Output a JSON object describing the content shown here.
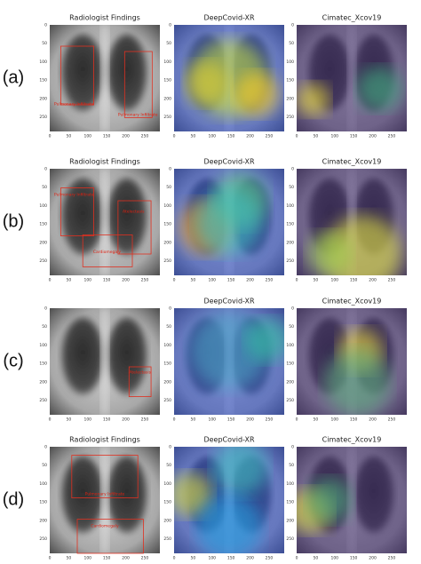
{
  "axis_ticks": [
    0,
    50,
    100,
    150,
    200,
    250
  ],
  "rows": [
    {
      "label": "(a)",
      "panels": [
        {
          "title": "Radiologist Findings",
          "annotations": [
            "Pulmonary Infiltrate",
            "Pulmonary Infiltrate"
          ]
        },
        {
          "title": "DeepCovid-XR"
        },
        {
          "title": "Cimatec_Xcov19"
        }
      ]
    },
    {
      "label": "(b)",
      "panels": [
        {
          "title": "Radiologist Findings",
          "annotations": [
            "Pulmonary Infiltrate",
            "Atelectasis",
            "Cardiomegaly"
          ]
        },
        {
          "title": "DeepCovid-XR"
        },
        {
          "title": "Cimatec_Xcov19"
        }
      ]
    },
    {
      "label": "(c)",
      "panels": [
        {
          "annotations": [
            "Atelectasis"
          ]
        },
        {
          "title": "DeepCovid-XR"
        },
        {
          "title": "Cimatec_Xcov19"
        }
      ]
    },
    {
      "label": "(d)",
      "panels": [
        {
          "title": "Radiologist Findings",
          "annotations": [
            "Pulmonary Infiltrate",
            "Cardiomegaly"
          ]
        },
        {
          "title": "DeepCovid-XR"
        },
        {
          "title": "Cimatec_Xcov19"
        }
      ]
    }
  ]
}
